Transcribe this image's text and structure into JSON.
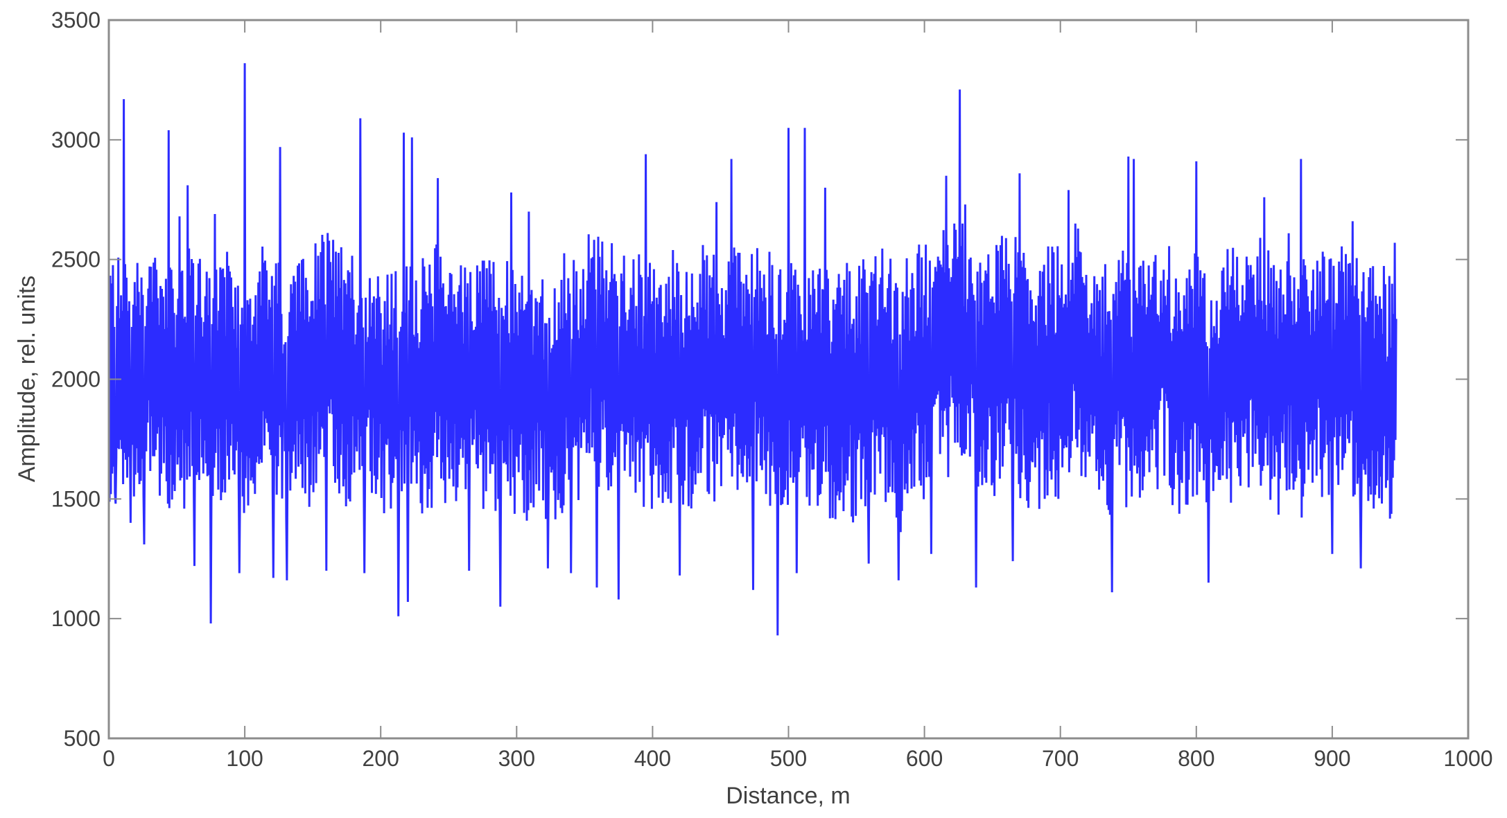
{
  "chart_data": {
    "type": "line",
    "title": "",
    "xlabel": "Distance, m",
    "ylabel": "Amplitude, rel. units",
    "xlim": [
      0,
      1000
    ],
    "ylim": [
      500,
      3500
    ],
    "xticks": [
      0,
      100,
      200,
      300,
      400,
      500,
      600,
      700,
      800,
      900,
      1000
    ],
    "yticks": [
      500,
      1000,
      1500,
      2000,
      2500,
      3000,
      3500
    ],
    "xtick_labels": [
      "0",
      "100",
      "200",
      "300",
      "400",
      "500",
      "600",
      "700",
      "800",
      "900",
      "1000"
    ],
    "ytick_labels": [
      "500",
      "1000",
      "1500",
      "2000",
      "2500",
      "3000",
      "3500"
    ],
    "grid": false,
    "legend": null,
    "line_color": "#1a1aff",
    "axis_color": "#8c8c8c",
    "series": [
      {
        "name": "amplitude",
        "x_range": [
          0,
          947
        ],
        "mean": 2000,
        "typical_range": [
          1500,
          2550
        ],
        "notable_extrema": [
          {
            "x": 2,
            "y": 2400
          },
          {
            "x": 5,
            "y": 1480
          },
          {
            "x": 11,
            "y": 3170
          },
          {
            "x": 16,
            "y": 1400
          },
          {
            "x": 26,
            "y": 1310
          },
          {
            "x": 44,
            "y": 3040
          },
          {
            "x": 52,
            "y": 2680
          },
          {
            "x": 58,
            "y": 2810
          },
          {
            "x": 63,
            "y": 1220
          },
          {
            "x": 75,
            "y": 980
          },
          {
            "x": 78,
            "y": 2690
          },
          {
            "x": 96,
            "y": 1190
          },
          {
            "x": 100,
            "y": 3320
          },
          {
            "x": 111,
            "y": 2450
          },
          {
            "x": 121,
            "y": 1170
          },
          {
            "x": 126,
            "y": 2970
          },
          {
            "x": 131,
            "y": 1160
          },
          {
            "x": 153,
            "y": 2290
          },
          {
            "x": 160,
            "y": 1200
          },
          {
            "x": 185,
            "y": 3090
          },
          {
            "x": 188,
            "y": 1190
          },
          {
            "x": 213,
            "y": 1010
          },
          {
            "x": 217,
            "y": 3030
          },
          {
            "x": 220,
            "y": 1070
          },
          {
            "x": 223,
            "y": 3010
          },
          {
            "x": 242,
            "y": 2840
          },
          {
            "x": 265,
            "y": 1200
          },
          {
            "x": 288,
            "y": 1050
          },
          {
            "x": 296,
            "y": 2780
          },
          {
            "x": 309,
            "y": 2700
          },
          {
            "x": 323,
            "y": 1210
          },
          {
            "x": 340,
            "y": 1190
          },
          {
            "x": 359,
            "y": 1130
          },
          {
            "x": 375,
            "y": 1080
          },
          {
            "x": 395,
            "y": 2940
          },
          {
            "x": 420,
            "y": 1180
          },
          {
            "x": 447,
            "y": 2740
          },
          {
            "x": 458,
            "y": 2920
          },
          {
            "x": 474,
            "y": 1120
          },
          {
            "x": 492,
            "y": 930
          },
          {
            "x": 500,
            "y": 3050
          },
          {
            "x": 506,
            "y": 1190
          },
          {
            "x": 512,
            "y": 3050
          },
          {
            "x": 527,
            "y": 2800
          },
          {
            "x": 559,
            "y": 1230
          },
          {
            "x": 581,
            "y": 1160
          },
          {
            "x": 605,
            "y": 1270
          },
          {
            "x": 616,
            "y": 2850
          },
          {
            "x": 626,
            "y": 3210
          },
          {
            "x": 630,
            "y": 2730
          },
          {
            "x": 638,
            "y": 1130
          },
          {
            "x": 665,
            "y": 1240
          },
          {
            "x": 670,
            "y": 2860
          },
          {
            "x": 706,
            "y": 2790
          },
          {
            "x": 738,
            "y": 1110
          },
          {
            "x": 750,
            "y": 2930
          },
          {
            "x": 754,
            "y": 2920
          },
          {
            "x": 800,
            "y": 2910
          },
          {
            "x": 809,
            "y": 1150
          },
          {
            "x": 850,
            "y": 2760
          },
          {
            "x": 877,
            "y": 2920
          },
          {
            "x": 900,
            "y": 1270
          },
          {
            "x": 915,
            "y": 2660
          },
          {
            "x": 921,
            "y": 1210
          },
          {
            "x": 946,
            "y": 2570
          }
        ]
      }
    ]
  }
}
